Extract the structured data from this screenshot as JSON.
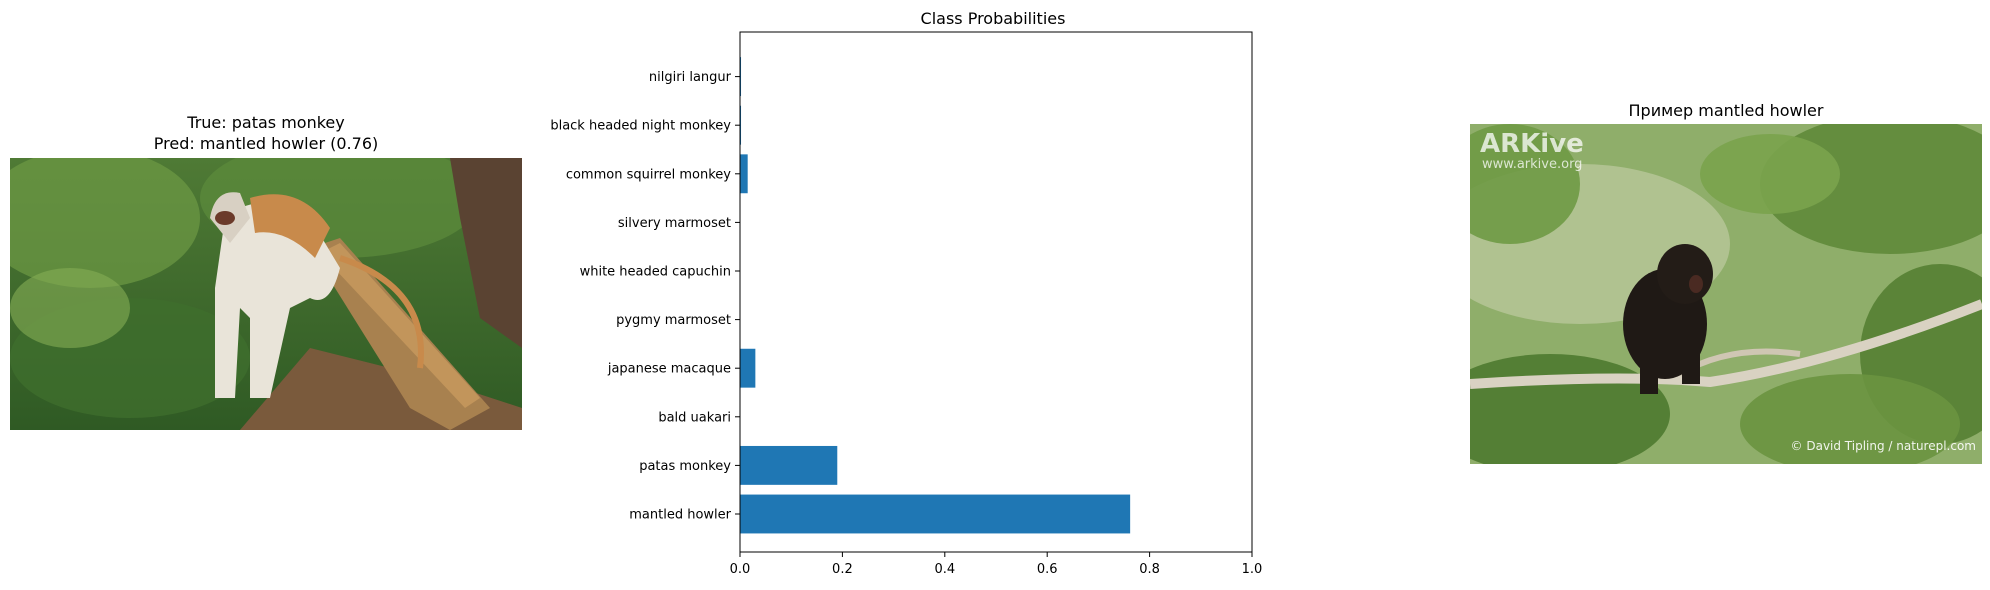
{
  "left_panel": {
    "title_line1": "True: patas monkey",
    "title_line2": "Pred: mantled howler (0.76)"
  },
  "right_panel": {
    "title": "Пример mantled howler",
    "watermark_logo": "ARKive",
    "watermark_url": "www.arkive.org",
    "credit": "© David Tipling / naturepl.com"
  },
  "chart_data": {
    "type": "bar",
    "orientation": "horizontal",
    "title": "Class Probabilities",
    "categories": [
      "mantled howler",
      "patas monkey",
      "bald uakari",
      "japanese macaque",
      "pygmy marmoset",
      "white headed capuchin",
      "silvery marmoset",
      "common squirrel monkey",
      "black headed night monkey",
      "nilgiri langur"
    ],
    "values": [
      0.762,
      0.19,
      0.0,
      0.03,
      0.0,
      0.0,
      0.0,
      0.015,
      0.002,
      0.002
    ],
    "xlim": [
      0,
      1.0
    ],
    "xticks": [
      "0.0",
      "0.2",
      "0.4",
      "0.6",
      "0.8",
      "1.0"
    ],
    "bar_color": "#1f77b4",
    "grid": false
  }
}
